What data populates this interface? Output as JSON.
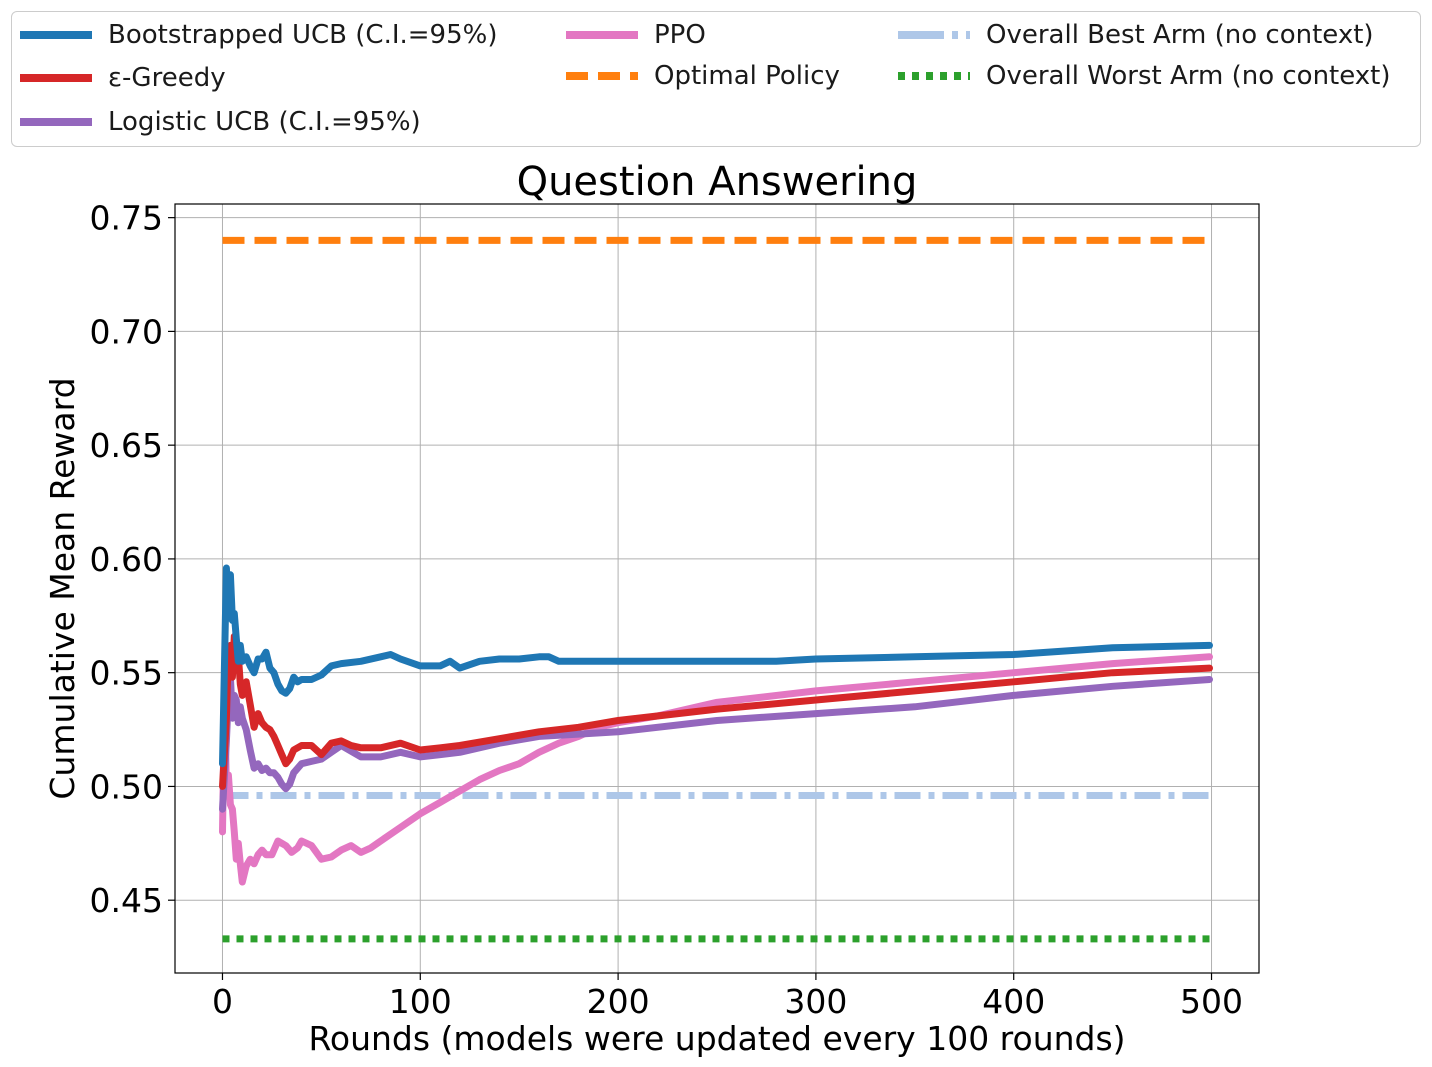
{
  "chart_data": {
    "type": "line",
    "title": "Question Answering",
    "xlabel": "Rounds (models were updated every 100 rounds)",
    "ylabel": "Cumulative Mean Reward",
    "xlim": [
      -24,
      524
    ],
    "ylim": [
      0.418,
      0.756
    ],
    "xticks": [
      0,
      100,
      200,
      300,
      400,
      500
    ],
    "xtick_labels": [
      "0",
      "100",
      "200",
      "300",
      "400",
      "500"
    ],
    "yticks": [
      0.45,
      0.5,
      0.55,
      0.6,
      0.65,
      0.7,
      0.75
    ],
    "ytick_labels": [
      "0.45",
      "0.50",
      "0.55",
      "0.60",
      "0.65",
      "0.70",
      "0.75"
    ],
    "grid": true,
    "legend_position": "top, above plot",
    "series": [
      {
        "name": "Bootstrapped UCB (C.I.=95%)",
        "color": "#1f77b4",
        "style": "solid",
        "x": [
          0,
          2,
          3,
          4,
          5,
          6,
          7,
          8,
          9,
          10,
          12,
          14,
          16,
          18,
          20,
          22,
          24,
          26,
          28,
          30,
          32,
          34,
          36,
          38,
          40,
          45,
          50,
          55,
          60,
          70,
          80,
          85,
          90,
          100,
          110,
          115,
          120,
          130,
          140,
          150,
          160,
          165,
          170,
          180,
          200,
          250,
          280,
          300,
          350,
          400,
          450,
          499
        ],
        "y": [
          0.51,
          0.596,
          0.574,
          0.593,
          0.573,
          0.576,
          0.565,
          0.555,
          0.562,
          0.555,
          0.557,
          0.553,
          0.55,
          0.556,
          0.556,
          0.559,
          0.552,
          0.55,
          0.545,
          0.542,
          0.541,
          0.543,
          0.548,
          0.546,
          0.547,
          0.547,
          0.549,
          0.553,
          0.554,
          0.555,
          0.557,
          0.558,
          0.556,
          0.553,
          0.553,
          0.555,
          0.552,
          0.555,
          0.556,
          0.556,
          0.557,
          0.557,
          0.555,
          0.555,
          0.555,
          0.555,
          0.555,
          0.556,
          0.557,
          0.558,
          0.561,
          0.562
        ]
      },
      {
        "name": "ε-Greedy",
        "color": "#d62728",
        "style": "solid",
        "x": [
          0,
          2,
          3,
          4,
          5,
          6,
          7,
          8,
          9,
          10,
          12,
          14,
          16,
          18,
          20,
          22,
          24,
          26,
          28,
          30,
          32,
          34,
          36,
          40,
          45,
          50,
          55,
          60,
          65,
          70,
          80,
          90,
          100,
          110,
          120,
          140,
          160,
          180,
          200,
          250,
          300,
          350,
          400,
          450,
          499
        ],
        "y": [
          0.5,
          0.53,
          0.56,
          0.562,
          0.548,
          0.566,
          0.555,
          0.558,
          0.545,
          0.54,
          0.546,
          0.536,
          0.526,
          0.532,
          0.528,
          0.526,
          0.525,
          0.522,
          0.518,
          0.514,
          0.51,
          0.512,
          0.516,
          0.518,
          0.518,
          0.514,
          0.519,
          0.52,
          0.518,
          0.517,
          0.517,
          0.519,
          0.516,
          0.517,
          0.518,
          0.521,
          0.524,
          0.526,
          0.529,
          0.534,
          0.538,
          0.542,
          0.546,
          0.55,
          0.552
        ]
      },
      {
        "name": "Logistic UCB (C.I.=95%)",
        "color": "#9467bd",
        "style": "solid",
        "x": [
          0,
          2,
          3,
          4,
          5,
          6,
          7,
          8,
          9,
          10,
          12,
          14,
          16,
          18,
          20,
          22,
          24,
          26,
          28,
          30,
          32,
          34,
          36,
          40,
          45,
          50,
          55,
          60,
          70,
          80,
          90,
          100,
          110,
          120,
          140,
          160,
          180,
          200,
          250,
          300,
          350,
          400,
          450,
          499
        ],
        "y": [
          0.49,
          0.52,
          0.54,
          0.548,
          0.53,
          0.54,
          0.538,
          0.528,
          0.535,
          0.53,
          0.525,
          0.516,
          0.508,
          0.51,
          0.507,
          0.508,
          0.506,
          0.506,
          0.504,
          0.501,
          0.499,
          0.501,
          0.506,
          0.51,
          0.511,
          0.512,
          0.515,
          0.518,
          0.513,
          0.513,
          0.515,
          0.513,
          0.514,
          0.515,
          0.519,
          0.522,
          0.523,
          0.524,
          0.529,
          0.532,
          0.535,
          0.54,
          0.544,
          0.547
        ]
      },
      {
        "name": "PPO",
        "color": "#e377c2",
        "style": "solid",
        "x": [
          0,
          1,
          2,
          3,
          4,
          5,
          6,
          7,
          8,
          9,
          10,
          12,
          14,
          16,
          18,
          20,
          22,
          25,
          28,
          30,
          32,
          35,
          38,
          40,
          45,
          50,
          55,
          60,
          65,
          70,
          75,
          80,
          90,
          100,
          110,
          120,
          130,
          140,
          150,
          160,
          170,
          180,
          190,
          200,
          220,
          250,
          300,
          350,
          400,
          450,
          499
        ],
        "y": [
          0.48,
          0.54,
          0.5,
          0.505,
          0.492,
          0.49,
          0.48,
          0.468,
          0.475,
          0.466,
          0.458,
          0.465,
          0.468,
          0.466,
          0.47,
          0.472,
          0.47,
          0.47,
          0.476,
          0.475,
          0.474,
          0.471,
          0.473,
          0.476,
          0.474,
          0.468,
          0.469,
          0.472,
          0.474,
          0.471,
          0.473,
          0.476,
          0.482,
          0.488,
          0.493,
          0.498,
          0.503,
          0.507,
          0.51,
          0.515,
          0.519,
          0.522,
          0.526,
          0.528,
          0.531,
          0.537,
          0.542,
          0.546,
          0.55,
          0.554,
          0.557
        ]
      },
      {
        "name": "Optimal Policy",
        "color": "#ff7f0e",
        "style": "dashed",
        "x": [
          0,
          499
        ],
        "y": [
          0.74,
          0.74
        ]
      },
      {
        "name": "Overall Best Arm (no context)",
        "color": "#aec7e8",
        "style": "dashdot",
        "x": [
          0,
          499
        ],
        "y": [
          0.496,
          0.496
        ]
      },
      {
        "name": "Overall Worst Arm (no context)",
        "color": "#2ca02c",
        "style": "dotted",
        "x": [
          0,
          499
        ],
        "y": [
          0.433,
          0.433
        ]
      }
    ]
  }
}
